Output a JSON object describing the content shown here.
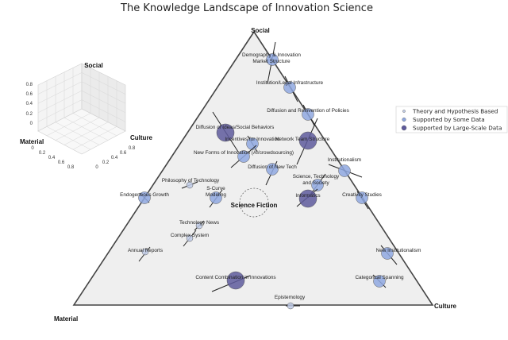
{
  "title": "The Knowledge Landscape of Innovation Science",
  "vertices": {
    "top": "Social",
    "left": "Material",
    "right": "Culture"
  },
  "center_label": "Science Fiction",
  "legend": [
    {
      "label": "Theory and Hypothesis Based",
      "level": "theory"
    },
    {
      "label": "Supported by Some Data",
      "level": "some"
    },
    {
      "label": "Supported by Large-Scale Data",
      "level": "large"
    }
  ],
  "colors": {
    "theory": "#bfcbe6",
    "some": "#8fa8e0",
    "large": "#5e5a9c",
    "triangle_fill": "#efefef",
    "triangle_stroke": "#444444"
  },
  "topics": [
    {
      "label": "Demography & Innovation\nMarket Structure",
      "level": "some"
    },
    {
      "label": "Institution/Legal Infrastructure",
      "level": "some"
    },
    {
      "label": "Diffusion and Reinvention of Policies",
      "level": "some"
    },
    {
      "label": "Diffusion of Ideas/Social Behaviors",
      "level": "large"
    },
    {
      "label": "Incentives for Innovation",
      "level": "some"
    },
    {
      "label": "Network Team Structure",
      "level": "large"
    },
    {
      "label": "New Forms of Innovation (AI/crowdsourcing)",
      "level": "some"
    },
    {
      "label": "Diffusion of New Tech",
      "level": "some"
    },
    {
      "label": "Institutionalism",
      "level": "some"
    },
    {
      "label": "Science, Technology\nand Society",
      "level": "some"
    },
    {
      "label": "Philosophy of Technology",
      "level": "theory"
    },
    {
      "label": "S-Curve\nModeling",
      "level": "some"
    },
    {
      "label": "Endogeneous Growth",
      "level": "some"
    },
    {
      "label": "Informatics",
      "level": "large"
    },
    {
      "label": "Creativity Studies",
      "level": "some"
    },
    {
      "label": "Technology News",
      "level": "theory"
    },
    {
      "label": "Complex System",
      "level": "theory"
    },
    {
      "label": "Annual Reports",
      "level": "theory"
    },
    {
      "label": "New Institutionalism",
      "level": "some"
    },
    {
      "label": "Content Combination in Innovations",
      "level": "large"
    },
    {
      "label": "Categorical Spanning",
      "level": "some"
    },
    {
      "label": "Epistemology",
      "level": "theory"
    }
  ],
  "inset": {
    "axes": {
      "top": "Social",
      "left": "Material",
      "right": "Culture"
    },
    "ticks": [
      "0",
      "0.2",
      "0.4",
      "0.6",
      "0.8"
    ]
  }
}
